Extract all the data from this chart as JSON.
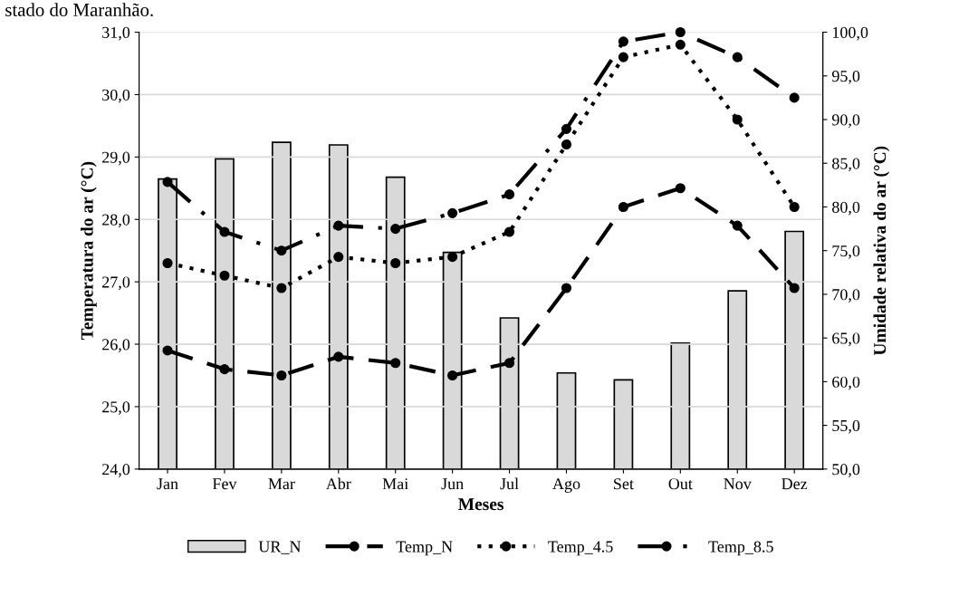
{
  "chart_data": {
    "type": "bar",
    "xlabel": "Meses",
    "ylabel": "Temperatura do ar (°C)",
    "y2label": "Umidade relativa do ar (°C)",
    "annotations": [
      "stado do Maranhão."
    ],
    "categories": [
      "Jan",
      "Fev",
      "Mar",
      "Abr",
      "Mai",
      "Jun",
      "Jul",
      "Ago",
      "Set",
      "Out",
      "Nov",
      "Dez"
    ],
    "series": [
      {
        "name": "UR_N",
        "axis": "y2",
        "color": "#d9d9d9",
        "values": [
          83.2,
          85.5,
          87.4,
          87.1,
          83.4,
          74.8,
          67.3,
          61.0,
          60.2,
          64.4,
          70.4,
          77.2
        ]
      },
      {
        "name": "Temp_N",
        "type": "line",
        "axis": "y",
        "color": "#000000",
        "line_style": "dashed",
        "marker": "circle",
        "values": [
          25.9,
          25.6,
          25.5,
          25.8,
          25.7,
          25.5,
          25.7,
          26.9,
          28.2,
          28.5,
          27.9,
          26.9
        ]
      },
      {
        "name": "Temp_4.5",
        "type": "line",
        "axis": "y",
        "color": "#000000",
        "line_style": "dotted",
        "marker": "circle",
        "values": [
          27.3,
          27.1,
          26.9,
          27.4,
          27.3,
          27.4,
          27.8,
          29.2,
          30.6,
          30.8,
          29.6,
          28.2
        ]
      },
      {
        "name": "Temp_8.5",
        "type": "line",
        "axis": "y",
        "color": "#000000",
        "line_style": "dashdot",
        "marker": "circle",
        "values": [
          28.6,
          27.8,
          27.5,
          27.9,
          27.85,
          28.1,
          28.4,
          29.45,
          30.85,
          31.0,
          30.6,
          29.95
        ]
      }
    ],
    "ylim": [
      24,
      31
    ],
    "yticks": [
      {
        "value": 24,
        "label": "24,0"
      },
      {
        "value": 25,
        "label": "25,0"
      },
      {
        "value": 26,
        "label": "26,0"
      },
      {
        "value": 27,
        "label": "27,0"
      },
      {
        "value": 28,
        "label": "28,0"
      },
      {
        "value": 29,
        "label": "29,0"
      },
      {
        "value": 30,
        "label": "30,0"
      },
      {
        "value": 31,
        "label": "31,0"
      }
    ],
    "y2lim": [
      50,
      100
    ],
    "y2ticks": [
      {
        "value": 50,
        "label": "50,0"
      },
      {
        "value": 55,
        "label": "55,0"
      },
      {
        "value": 60,
        "label": "60,0"
      },
      {
        "value": 65,
        "label": "65,0"
      },
      {
        "value": 70,
        "label": "70,0"
      },
      {
        "value": 75,
        "label": "75,0"
      },
      {
        "value": 80,
        "label": "80,0"
      },
      {
        "value": 85,
        "label": "85,0"
      },
      {
        "value": 90,
        "label": "90,0"
      },
      {
        "value": 95,
        "label": "95,0"
      },
      {
        "value": 100,
        "label": "100,0"
      }
    ],
    "grid": "y",
    "legend": "bottom"
  }
}
